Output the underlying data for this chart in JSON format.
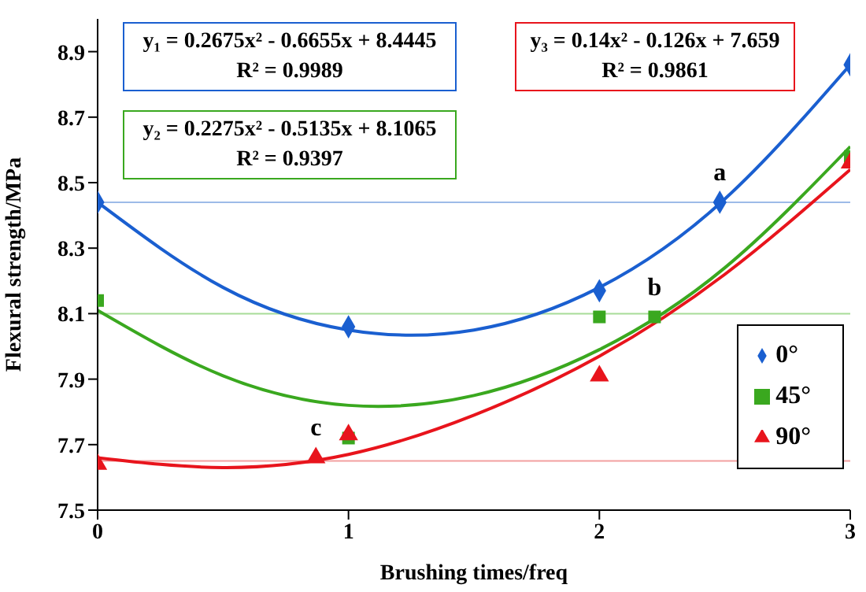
{
  "chart_data": {
    "type": "scatter",
    "xlabel": "Brushing times/freq",
    "ylabel": "Flexural strength/MPa",
    "xlim": [
      0,
      3
    ],
    "xticks": [
      0,
      1,
      2,
      3
    ],
    "ylim": [
      7.5,
      9.0
    ],
    "yticks": [
      7.5,
      7.7,
      7.9,
      8.1,
      8.3,
      8.5,
      8.7,
      8.9
    ],
    "x": [
      0,
      1,
      2,
      3
    ],
    "series": [
      {
        "name": "0°",
        "color": "#1a5fd0",
        "marker": "diamond",
        "values": [
          8.44,
          8.06,
          8.17,
          8.86
        ]
      },
      {
        "name": "45°",
        "color": "#3aa81f",
        "marker": "square",
        "values": [
          8.14,
          7.72,
          8.09,
          8.58
        ]
      },
      {
        "name": "90°",
        "color": "#e8141c",
        "marker": "triangle",
        "values": [
          7.64,
          7.73,
          7.91,
          8.56
        ]
      },
      {
        "type": "line",
        "color": "#1a5fd0",
        "marker": "none",
        "x": [
          0,
          0.5,
          1,
          1.5,
          2,
          2.5,
          3
        ],
        "values": [
          8.44,
          8.18,
          8.05,
          8.05,
          8.18,
          8.45,
          8.86
        ]
      },
      {
        "type": "line",
        "color": "#3aa81f",
        "marker": "none",
        "x": [
          0,
          0.5,
          1,
          1.5,
          2,
          2.5,
          3
        ],
        "values": [
          8.11,
          7.91,
          7.82,
          7.85,
          7.99,
          8.24,
          8.61
        ]
      },
      {
        "type": "line",
        "color": "#e8141c",
        "marker": "none",
        "x": [
          0,
          0.5,
          1,
          1.5,
          2,
          2.5,
          3
        ],
        "values": [
          7.66,
          7.63,
          7.67,
          7.79,
          7.97,
          8.22,
          8.54
        ]
      },
      {
        "color": "#1a5fd0",
        "marker": "diamond",
        "x": [
          2.48
        ],
        "values": [
          8.44
        ]
      },
      {
        "color": "#3aa81f",
        "marker": "square",
        "x": [
          2.22
        ],
        "values": [
          8.09
        ]
      },
      {
        "color": "#e8141c",
        "marker": "triangle",
        "x": [
          0.87
        ],
        "values": [
          7.66
        ]
      }
    ],
    "ref_lines": [
      {
        "axis": "y",
        "value": 8.44,
        "color": "#9dbbe8"
      },
      {
        "axis": "y",
        "value": 8.1,
        "color": "#a8dc98"
      },
      {
        "axis": "y",
        "value": 7.65,
        "color": "#f2a0a0"
      }
    ],
    "annotations": [
      "y₁ = 0.2675x² - 0.6655x + 8.4445",
      "R² = 0.9989",
      "y₂ = 0.2275x² - 0.5135x + 8.1065",
      "R² = 0.9397",
      "y₃ = 0.14x² - 0.126x + 7.659",
      "R² = 0.9861",
      {
        "text": "a",
        "x": 2.48,
        "y": 8.44
      },
      {
        "text": "b",
        "x": 2.22,
        "y": 8.09
      },
      {
        "text": "c",
        "x": 0.87,
        "y": 7.66
      }
    ],
    "legend": "right",
    "grid": false
  }
}
